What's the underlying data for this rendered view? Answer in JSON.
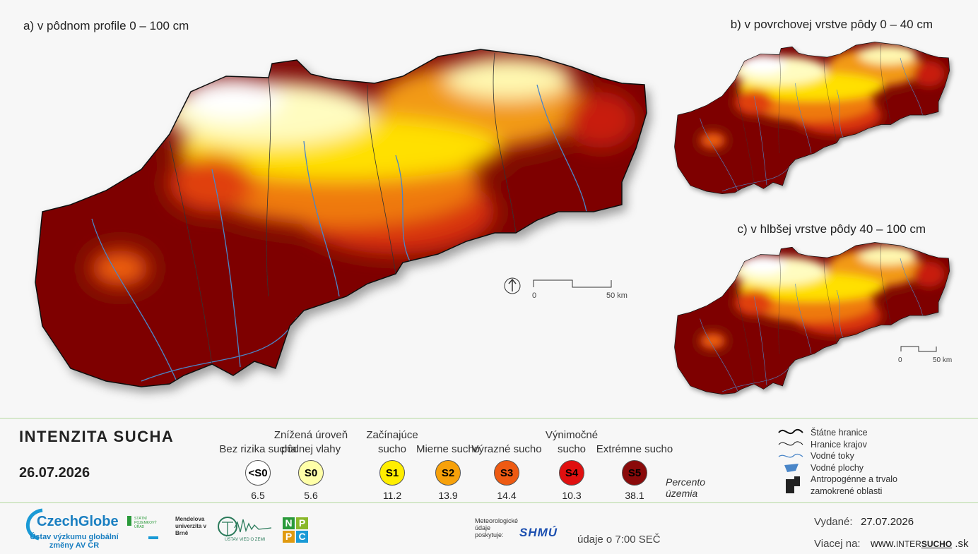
{
  "maps": [
    {
      "title": "a) v pôdnom profile 0 – 100 cm"
    },
    {
      "title": "b) v povrchovej vrstve pôdy 0 – 40 cm"
    },
    {
      "title": "c) v hlbšej vrstve pôdy 40 – 100 cm"
    }
  ],
  "scalebars": [
    {
      "start": "0",
      "end": "50 km"
    },
    {
      "start": "0",
      "end": "50 km"
    }
  ],
  "legend": {
    "title": "INTENZITA SUCHA",
    "date": "26.07.2026",
    "classes": [
      {
        "name": "Bez rizika sucha",
        "code": "<S0",
        "percent": 6.5,
        "color": "#ffffff",
        "text_color": "#000000"
      },
      {
        "name": "Znížená úroveň pôdnej vlahy",
        "code": "S0",
        "percent": 5.6,
        "color": "#ffffa8",
        "text_color": "#000000"
      },
      {
        "name": "Začínajúce sucho",
        "code": "S1",
        "percent": 11.2,
        "color": "#ffee00",
        "text_color": "#000000"
      },
      {
        "name": "Mierne sucho",
        "code": "S2",
        "percent": 13.9,
        "color": "#f7a10a",
        "text_color": "#000000"
      },
      {
        "name": "Výrazné sucho",
        "code": "S3",
        "percent": 14.4,
        "color": "#ee5a12",
        "text_color": "#000000"
      },
      {
        "name": "Výnimočné sucho",
        "code": "S4",
        "percent": 10.3,
        "color": "#e01010",
        "text_color": "#000000"
      },
      {
        "name": "Extrémne sucho",
        "code": "S5",
        "percent": 38.1,
        "color": "#8a0a0a",
        "text_color": "#000000"
      }
    ],
    "percent_label": "Percento územia",
    "symbols": [
      "Štátne hranice",
      "Hranice krajov",
      "Vodné toky",
      "Vodné plochy",
      "Antropogénne a trvalo zamokrené oblasti"
    ]
  },
  "footer": {
    "czechglobe": "CzechGlobe",
    "czechglobe_sub": "Ústav výzkumu globální změny AV ČR",
    "spu": "STÁTNÍ POZEMKOVÝ ÚŘAD",
    "mendelu": "Mendelova univerzita v Brně",
    "uvz": "ÚSTAV VIED O ZEMI",
    "nppc": [
      "N",
      "P",
      "P",
      "C"
    ],
    "meteo": "Meteorologické údaje poskytuje:",
    "shmu": "SHMÚ",
    "time_note": "údaje o 7:00 SEČ",
    "issued_label": "Vydané:",
    "issued_date": "27.07.2026",
    "more_label": "Viacej na:",
    "url_prefix": "www.",
    "url_brand_a": "INTER",
    "url_brand_b": "SUCHO",
    "url_suffix": ".sk"
  }
}
